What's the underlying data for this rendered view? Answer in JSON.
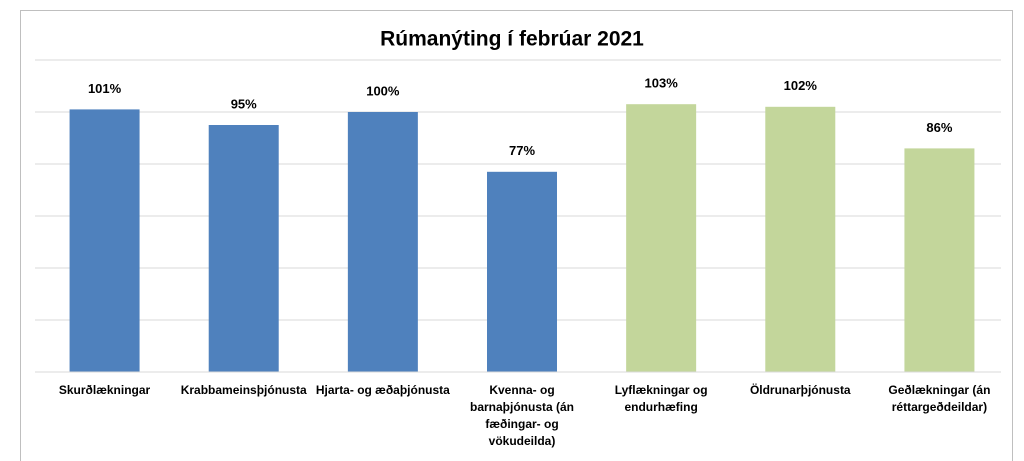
{
  "chart_data": {
    "type": "bar",
    "title": "Rúmanýting í febrúar 2021",
    "categories": [
      "Skurðlækningar",
      "Krabbameinsþjónusta",
      "Hjarta- og æðaþjónusta",
      "Kvenna- og barnaþjónusta (án fæðingar- og vökudeilda)",
      "Lyflækningar og endurhæfing",
      "Öldrunarþjónusta",
      "Geðlækningar (án réttargeðdeildar)"
    ],
    "values": [
      101,
      95,
      100,
      77,
      103,
      102,
      86
    ],
    "value_labels": [
      "101%",
      "95%",
      "100%",
      "77%",
      "103%",
      "102%",
      "86%"
    ],
    "colors": [
      "#4f81bd",
      "#4f81bd",
      "#4f81bd",
      "#4f81bd",
      "#c3d69b",
      "#c3d69b",
      "#c3d69b"
    ],
    "ylim": [
      0,
      120
    ],
    "yticks": [
      0,
      20,
      40,
      60,
      80,
      100,
      120
    ],
    "grid": true
  }
}
